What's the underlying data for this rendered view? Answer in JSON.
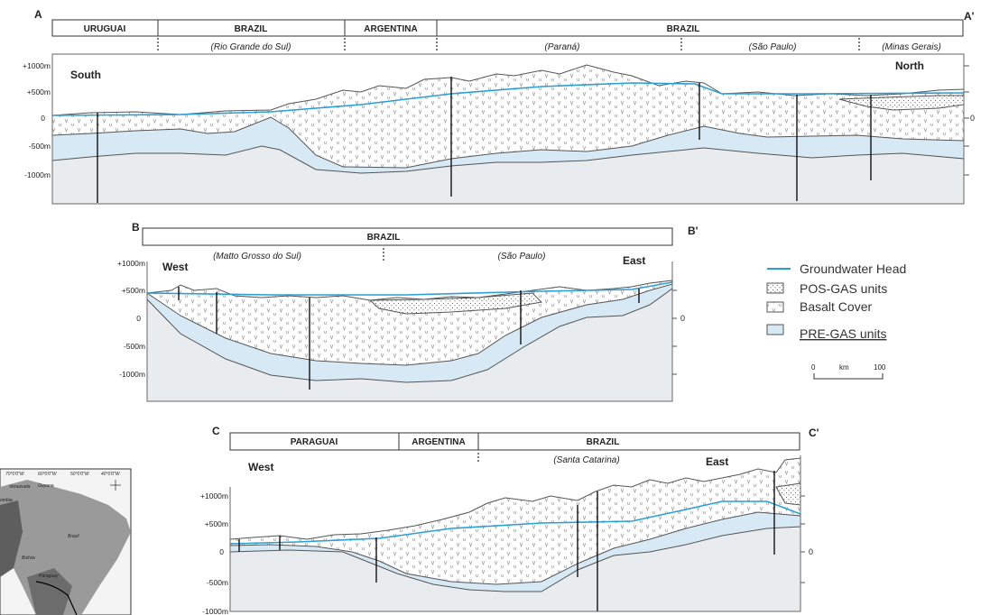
{
  "sections": [
    {
      "start": "A",
      "end": "A'",
      "regions": [
        "URUGUAI",
        "BRAZIL",
        "ARGENTINA",
        "BRAZIL"
      ],
      "states": [
        "(Rio Grande do Sul)",
        "(Paraná)",
        "(São Paulo)",
        "(Minas Gerais)"
      ],
      "left_axis": [
        "+1000m",
        "+500m",
        "0",
        "-500m",
        "-1000m"
      ],
      "right_axis": "0",
      "left_dir": "South",
      "right_dir": "North"
    },
    {
      "start": "B",
      "end": "B'",
      "regions": [
        "BRAZIL"
      ],
      "states": [
        "(Matto Grosso do Sul)",
        "(São Paulo)"
      ],
      "left_axis": [
        "+1000m",
        "+500m",
        "0",
        "-500m",
        "-1000m"
      ],
      "right_axis": "0",
      "left_dir": "West",
      "right_dir": "East"
    },
    {
      "start": "C",
      "end": "C'",
      "regions": [
        "PARAGUAI",
        "ARGENTINA",
        "BRAZIL"
      ],
      "states": [
        "(Santa Catarina)"
      ],
      "left_axis": [
        "+1000m",
        "+500m",
        "0",
        "-500m",
        "-1000m"
      ],
      "right_axis": "0",
      "left_dir": "West",
      "right_dir": "East"
    }
  ],
  "legend": {
    "items": [
      "Groundwater Head",
      "POS-GAS units",
      "Basalt Cover",
      "PRE-GAS units"
    ]
  },
  "scale": {
    "start": "0",
    "unit": "km",
    "end": "100"
  },
  "map": {
    "coordinates": [
      "70°0'0\"W",
      "60°0'0\"W",
      "50°0'0\"W",
      "40°0'0\"W"
    ],
    "labels": [
      "Venezuela",
      "Guyana",
      "ombia",
      "Brazil",
      "Bolivia",
      "Paraguay"
    ]
  }
}
